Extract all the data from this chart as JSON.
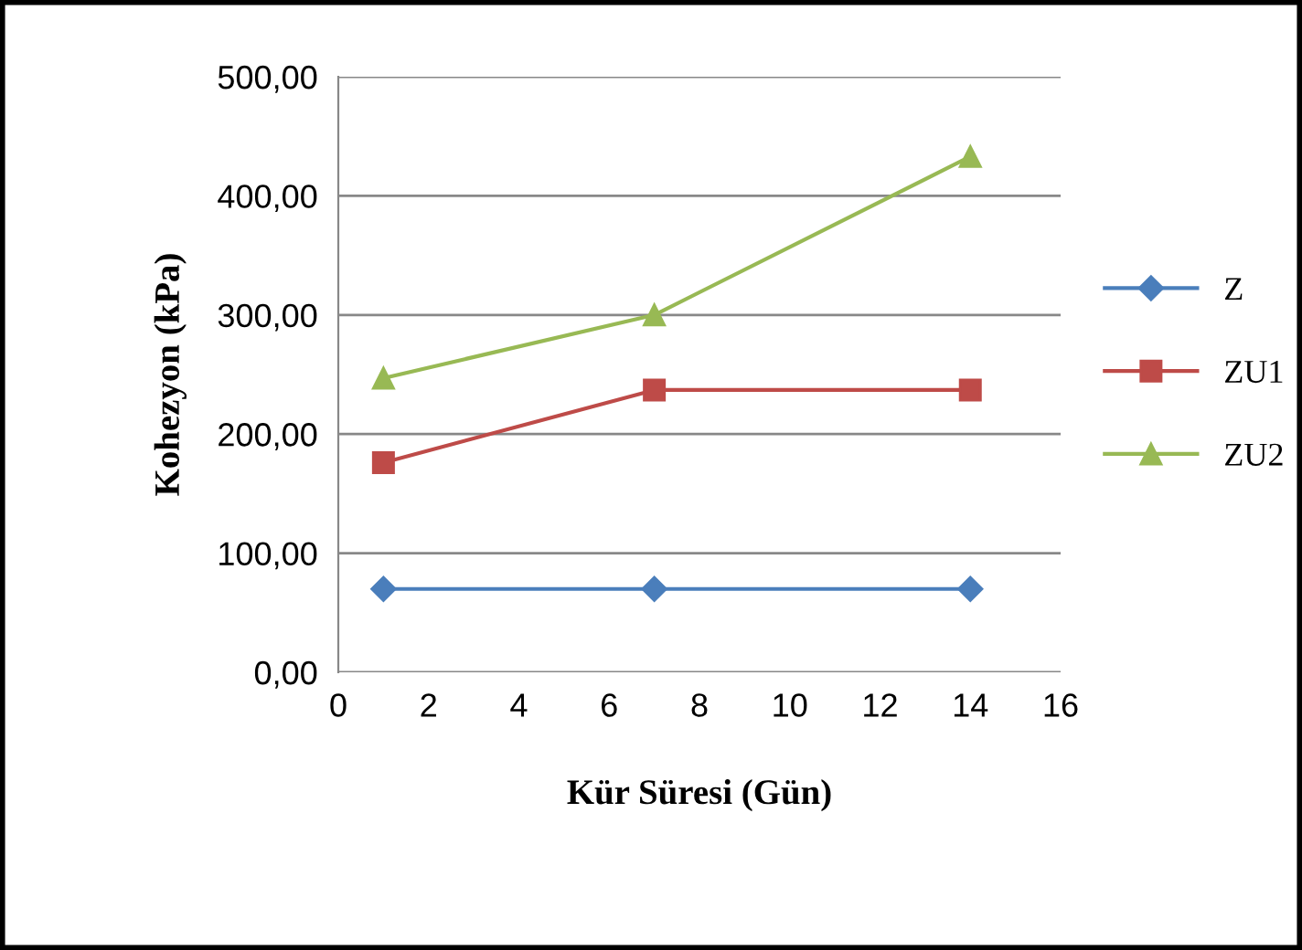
{
  "chart_data": {
    "type": "line",
    "xlabel": "Kür Süresi (Gün)",
    "ylabel": "Kohezyon (kPa)",
    "xlim": [
      0,
      16
    ],
    "xticks": [
      0,
      2,
      4,
      6,
      8,
      10,
      12,
      14,
      16
    ],
    "ylim": [
      0,
      500
    ],
    "yticks": [
      {
        "value": 0,
        "label": "0,00"
      },
      {
        "value": 100,
        "label": "100,00"
      },
      {
        "value": 200,
        "label": "200,00"
      },
      {
        "value": 300,
        "label": "300,00"
      },
      {
        "value": 400,
        "label": "400,00"
      },
      {
        "value": 500,
        "label": "500,00"
      }
    ],
    "grid": "y",
    "legend": "right",
    "line_style": "solid",
    "series": [
      {
        "name": "Z",
        "color": "#4a7ebb",
        "marker": "diamond",
        "x": [
          1,
          7,
          14
        ],
        "values": [
          70,
          70,
          70
        ]
      },
      {
        "name": "ZU1",
        "color": "#be4b48",
        "marker": "square",
        "x": [
          1,
          7,
          14
        ],
        "values": [
          176,
          237,
          237
        ]
      },
      {
        "name": "ZU2",
        "color": "#98b954",
        "marker": "triangle",
        "x": [
          1,
          7,
          14
        ],
        "values": [
          247,
          300,
          433
        ]
      }
    ]
  }
}
